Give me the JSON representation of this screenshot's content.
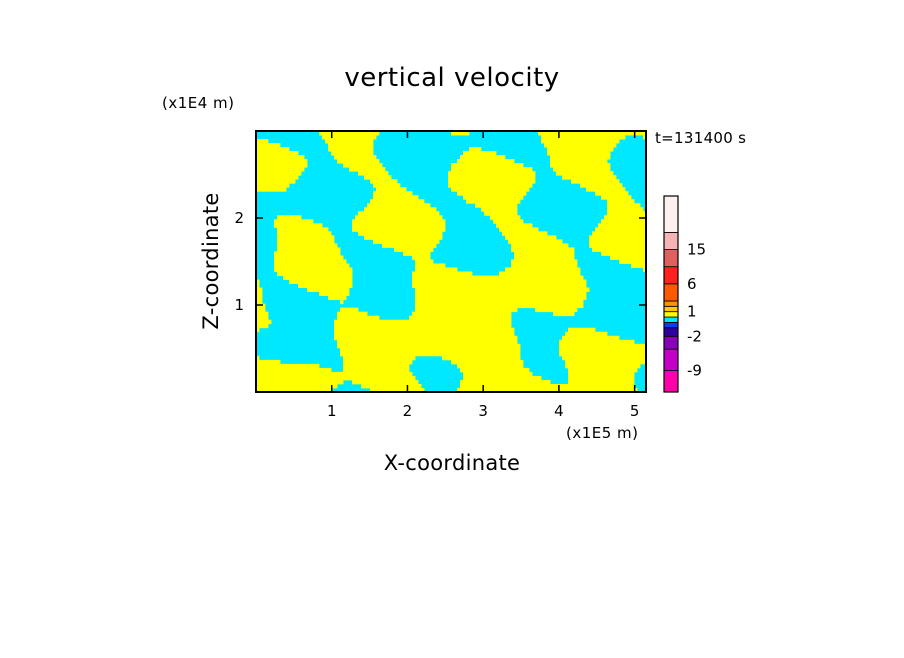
{
  "chart_data": {
    "type": "heatmap",
    "title": "vertical velocity",
    "xlabel": "X-coordinate",
    "ylabel": "Z-coordinate",
    "x_unit": "(x1E5 m)",
    "y_unit": "(x1E4 m)",
    "time_label": "t=131400 s",
    "xlim": [
      0,
      5.15
    ],
    "ylim": [
      0,
      3.0
    ],
    "x_ticks": [
      "1",
      "2",
      "3",
      "4",
      "5"
    ],
    "y_ticks": [
      "1",
      "2"
    ],
    "colorbar": {
      "levels": [
        {
          "color": "#ff00aa"
        },
        {
          "color": "#c400c8"
        },
        {
          "color": "#8800b8"
        },
        {
          "color": "#3000a0"
        },
        {
          "color": "#0040ff"
        },
        {
          "color": "#00e8ff"
        },
        {
          "color": "#ffff00"
        },
        {
          "color": "#ffcc00"
        },
        {
          "color": "#ff9000"
        },
        {
          "color": "#ff5a00"
        },
        {
          "color": "#ff2020"
        },
        {
          "color": "#e06060"
        },
        {
          "color": "#f4b4b4"
        },
        {
          "color": "#fff0f0"
        }
      ],
      "labels": [
        "-9",
        "-2",
        "1",
        "6",
        "15"
      ]
    },
    "colors": {
      "updraft": "#ffff00",
      "downdraft": "#00e8ff",
      "strong_down": "#3000a0"
    }
  }
}
